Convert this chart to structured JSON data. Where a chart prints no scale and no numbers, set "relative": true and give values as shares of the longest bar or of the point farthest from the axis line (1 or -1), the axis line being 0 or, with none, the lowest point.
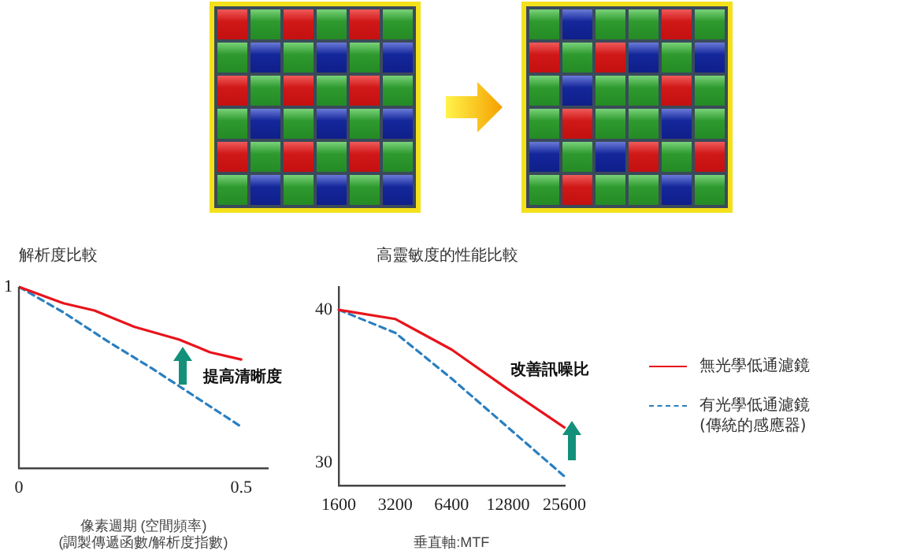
{
  "chart_data": [
    {
      "type": "line",
      "title": "解析度比較",
      "xlabel": "像素週期 (空間頻率)\n(調製傳遞函數/解析度指數)",
      "xlim": [
        0,
        0.56
      ],
      "xticks": [
        0,
        0.5
      ],
      "relative": true,
      "grid": false,
      "legend": false,
      "marker": "none",
      "annotations": [
        "提高清晰度",
        {
          "text": "1",
          "x": 0,
          "y": 1
        }
      ],
      "series": [
        {
          "color": "#e8141c",
          "line_style": "solid",
          "x": [
            0,
            0.1,
            0.17,
            0.26,
            0.36,
            0.43,
            0.5
          ],
          "values": [
            1,
            0.91,
            0.87,
            0.78,
            0.71,
            0.64,
            0.6
          ]
        },
        {
          "color": "#2a7fc0",
          "line_style": "dashed",
          "x": [
            0,
            0.1,
            0.2,
            0.3,
            0.4,
            0.5
          ],
          "values": [
            1,
            0.86,
            0.7,
            0.55,
            0.39,
            0.23
          ]
        }
      ]
    },
    {
      "type": "line",
      "title": "高靈敏度的性能比較",
      "xlabel": "垂直軸:MTF",
      "categories": [
        "1600",
        "3200",
        "6400",
        "12800",
        "25600"
      ],
      "ylim": [
        28.5,
        41.5
      ],
      "yticks": [
        30,
        40
      ],
      "grid": false,
      "legend": "right",
      "marker": "none",
      "annotations": [
        "改善訊噪比"
      ],
      "series": [
        {
          "name": "無光學低通濾鏡",
          "color": "#e8141c",
          "line_style": "solid",
          "values": [
            40,
            39.4,
            37.4,
            34.8,
            32.3
          ]
        },
        {
          "name": "有光學低通濾鏡\n(傳統的感應器)",
          "color": "#2a7fc0",
          "line_style": "dashed",
          "values": [
            40,
            38.5,
            35.5,
            32.3,
            29.1
          ]
        }
      ]
    }
  ]
}
